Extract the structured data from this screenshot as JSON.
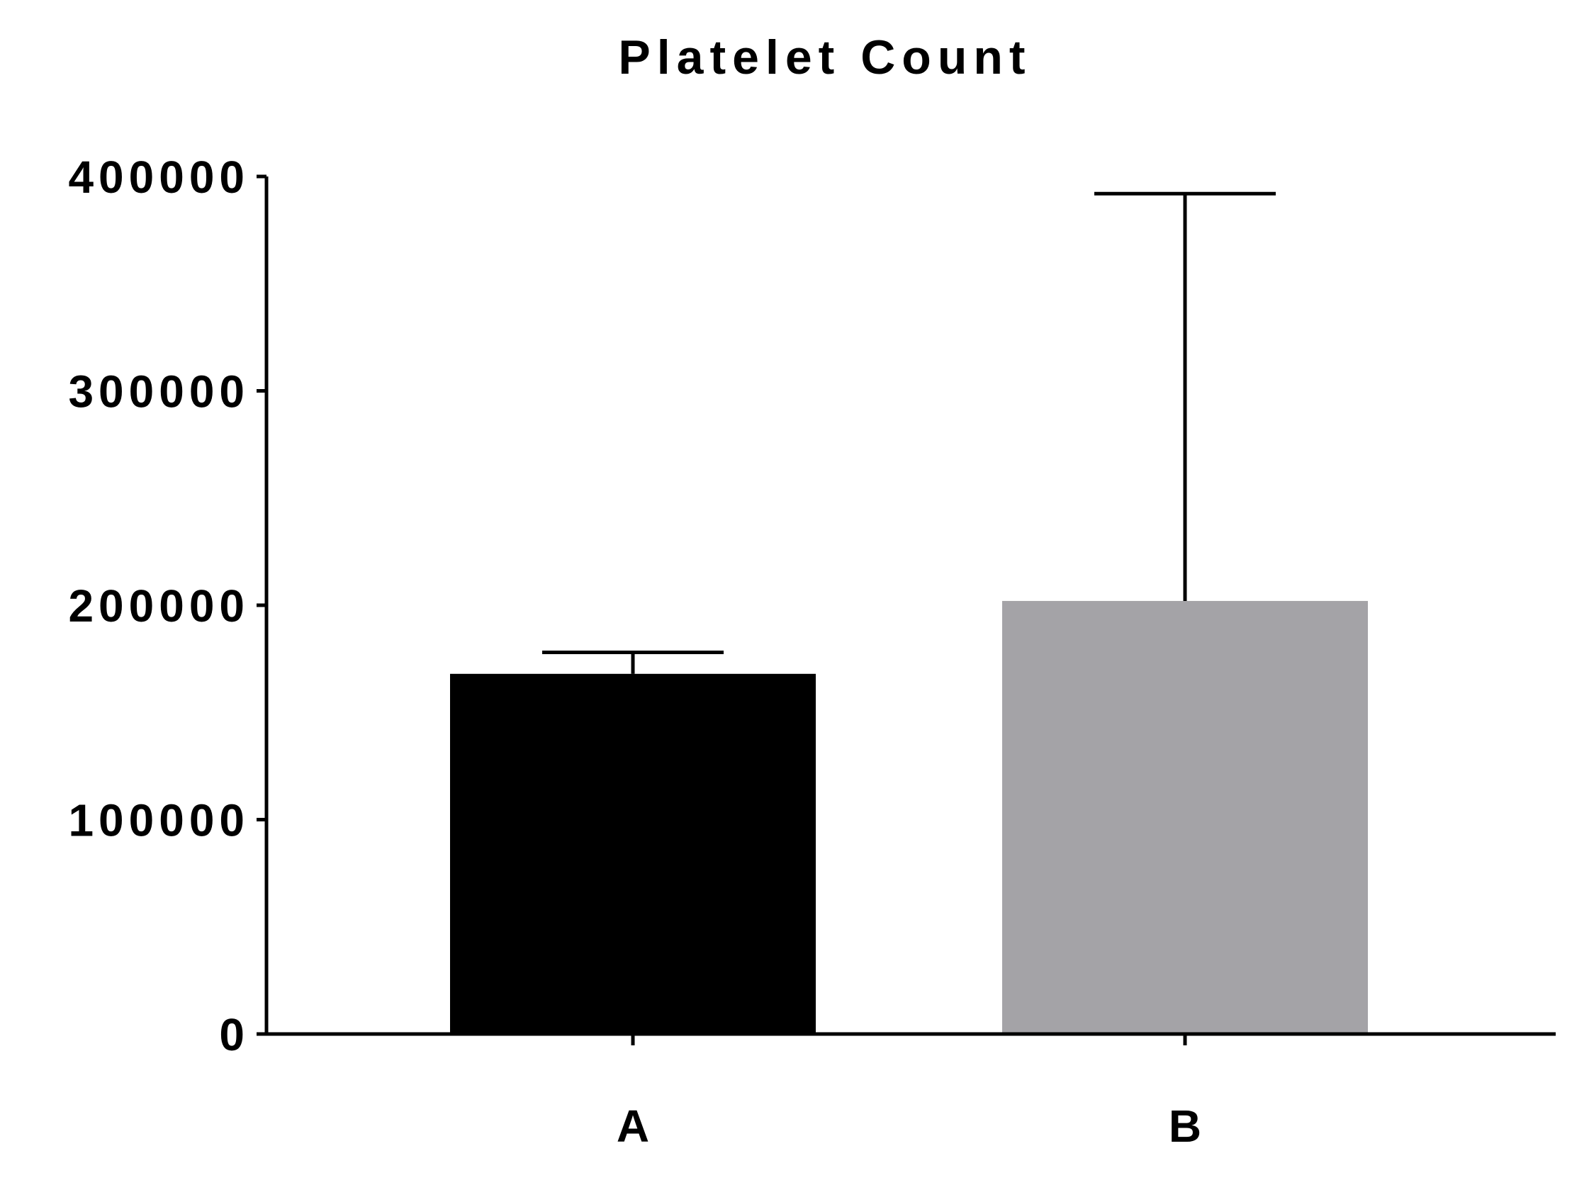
{
  "chart_data": {
    "type": "bar",
    "title": "Platelet Count",
    "xlabel": "",
    "ylabel": "",
    "categories": [
      "A",
      "B"
    ],
    "values": [
      168000,
      202000
    ],
    "error_upper": [
      178000,
      392000
    ],
    "colors": [
      "#000000",
      "#a4a3a7"
    ],
    "ylim": [
      0,
      400000
    ],
    "yticks": [
      0,
      100000,
      200000,
      300000,
      400000
    ],
    "ytick_labels": [
      "0",
      "100000",
      "200000",
      "300000",
      "400000"
    ],
    "grid": false,
    "legend": "none"
  }
}
